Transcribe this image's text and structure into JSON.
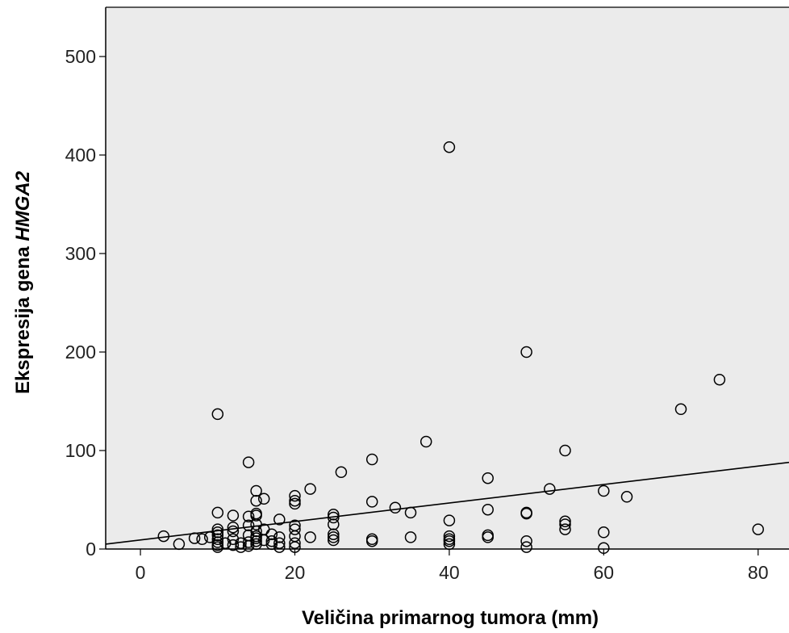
{
  "chart_data": {
    "type": "scatter",
    "title": "",
    "xlabel": "Veličina primarnog tumora (mm)",
    "ylabel_prefix": "Ekspresija gena ",
    "ylabel_gene": "HMGA2",
    "xlim": [
      -4.5,
      84
    ],
    "ylim": [
      0,
      550
    ],
    "xticks": [
      0,
      20,
      40,
      60,
      80
    ],
    "yticks": [
      0,
      100,
      200,
      300,
      400,
      500
    ],
    "xtick_labels": [
      "0",
      "20",
      "40",
      "60",
      "80"
    ],
    "ytick_labels": [
      "0",
      "100",
      "200",
      "300",
      "400",
      "500"
    ],
    "grid": false,
    "background_color": "#ebebeb",
    "marker_color": "#000000",
    "fit_line": {
      "type": "linear",
      "x": [
        -4.5,
        84
      ],
      "y": [
        5,
        88
      ]
    },
    "points": [
      [
        3,
        13
      ],
      [
        5,
        5
      ],
      [
        7,
        11
      ],
      [
        8,
        10
      ],
      [
        9,
        12
      ],
      [
        10,
        137
      ],
      [
        10,
        37
      ],
      [
        10,
        20
      ],
      [
        10,
        17
      ],
      [
        10,
        14
      ],
      [
        10,
        10
      ],
      [
        10,
        7
      ],
      [
        10,
        4
      ],
      [
        10,
        2
      ],
      [
        11,
        6
      ],
      [
        12,
        34
      ],
      [
        12,
        22
      ],
      [
        12,
        18
      ],
      [
        12,
        10
      ],
      [
        12,
        4
      ],
      [
        13,
        6
      ],
      [
        13,
        2
      ],
      [
        14,
        88
      ],
      [
        14,
        33
      ],
      [
        14,
        24
      ],
      [
        14,
        14
      ],
      [
        14,
        7
      ],
      [
        14,
        3
      ],
      [
        15,
        59
      ],
      [
        15,
        49
      ],
      [
        15,
        36
      ],
      [
        15,
        34
      ],
      [
        15,
        25
      ],
      [
        15,
        18
      ],
      [
        15,
        13
      ],
      [
        15,
        11
      ],
      [
        15,
        8
      ],
      [
        15,
        5
      ],
      [
        16,
        51
      ],
      [
        16,
        20
      ],
      [
        16,
        9
      ],
      [
        17,
        15
      ],
      [
        17,
        8
      ],
      [
        17,
        5
      ],
      [
        18,
        30
      ],
      [
        18,
        12
      ],
      [
        18,
        6
      ],
      [
        18,
        2
      ],
      [
        20,
        54
      ],
      [
        20,
        49
      ],
      [
        20,
        46
      ],
      [
        20,
        24
      ],
      [
        20,
        20
      ],
      [
        20,
        13
      ],
      [
        20,
        6
      ],
      [
        20,
        2
      ],
      [
        22,
        61
      ],
      [
        22,
        12
      ],
      [
        25,
        35
      ],
      [
        25,
        32
      ],
      [
        25,
        25
      ],
      [
        25,
        15
      ],
      [
        25,
        12
      ],
      [
        25,
        9
      ],
      [
        26,
        78
      ],
      [
        30,
        91
      ],
      [
        30,
        48
      ],
      [
        30,
        10
      ],
      [
        30,
        8
      ],
      [
        33,
        42
      ],
      [
        35,
        37
      ],
      [
        35,
        12
      ],
      [
        37,
        109
      ],
      [
        40,
        408
      ],
      [
        40,
        29
      ],
      [
        40,
        13
      ],
      [
        40,
        10
      ],
      [
        40,
        8
      ],
      [
        40,
        5
      ],
      [
        45,
        72
      ],
      [
        45,
        40
      ],
      [
        45,
        14
      ],
      [
        45,
        12
      ],
      [
        50,
        200
      ],
      [
        50,
        37
      ],
      [
        50,
        36
      ],
      [
        50,
        8
      ],
      [
        50,
        2
      ],
      [
        53,
        61
      ],
      [
        55,
        100
      ],
      [
        55,
        28
      ],
      [
        55,
        25
      ],
      [
        55,
        20
      ],
      [
        60,
        59
      ],
      [
        60,
        17
      ],
      [
        60,
        1
      ],
      [
        63,
        53
      ],
      [
        70,
        142
      ],
      [
        75,
        172
      ],
      [
        80,
        20
      ]
    ]
  }
}
